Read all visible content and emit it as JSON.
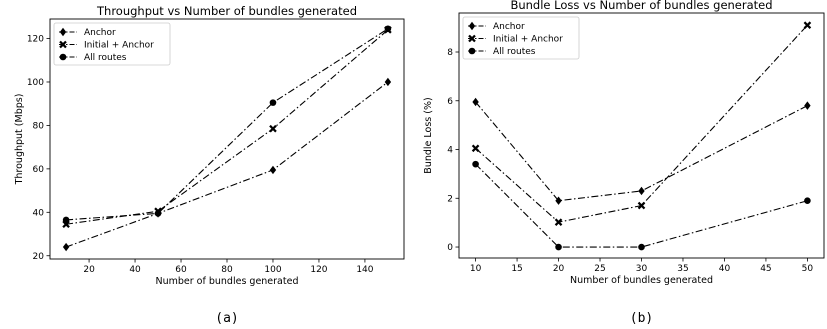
{
  "chart_data": [
    {
      "type": "line",
      "title": "Throughput vs Number of bundles generated",
      "xlabel": "Number of bundles generated",
      "ylabel": "Throughput (Mbps)",
      "caption": "(a)",
      "x": [
        10,
        50,
        100,
        150
      ],
      "xlim": [
        3,
        157
      ],
      "ylim": [
        18.5,
        129
      ],
      "xticks": [
        20,
        40,
        60,
        80,
        100,
        120,
        140
      ],
      "yticks": [
        20,
        40,
        60,
        80,
        100,
        120
      ],
      "legend_position": "top-left",
      "grid": false,
      "series": [
        {
          "name": "Anchor",
          "marker": "diamond",
          "values": [
            24,
            39.5,
            59.5,
            100
          ]
        },
        {
          "name": "Initial + Anchor",
          "marker": "x",
          "values": [
            34.5,
            40.5,
            78.5,
            124
          ]
        },
        {
          "name": "All routes",
          "marker": "circle",
          "values": [
            36.5,
            39.5,
            90.5,
            124.5
          ]
        }
      ]
    },
    {
      "type": "line",
      "title": "Bundle Loss vs Number of bundles generated",
      "xlabel": "Number of bundles generated",
      "ylabel": "Bundle Loss (%)",
      "caption": "(b)",
      "x": [
        10,
        20,
        30,
        50
      ],
      "xlim": [
        8,
        52
      ],
      "ylim": [
        -0.45,
        9.6
      ],
      "xticks": [
        10,
        15,
        20,
        25,
        30,
        35,
        40,
        45,
        50
      ],
      "yticks": [
        0,
        2,
        4,
        6,
        8
      ],
      "legend_position": "top-left",
      "grid": false,
      "series": [
        {
          "name": "Anchor",
          "marker": "diamond",
          "values": [
            5.95,
            1.9,
            2.3,
            5.8
          ]
        },
        {
          "name": "Initial + Anchor",
          "marker": "x",
          "values": [
            4.05,
            1.02,
            1.7,
            9.1
          ]
        },
        {
          "name": "All routes",
          "marker": "circle",
          "values": [
            3.4,
            0.0,
            0.0,
            1.9
          ]
        }
      ]
    }
  ]
}
